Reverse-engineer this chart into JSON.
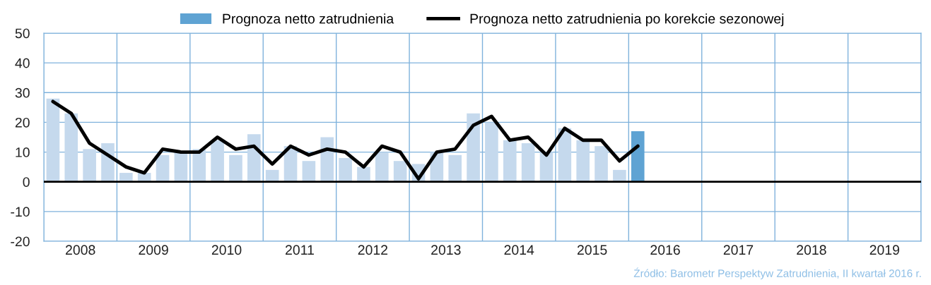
{
  "chart_data": {
    "type": "bar",
    "x": [
      2008.125,
      2008.375,
      2008.625,
      2008.875,
      2009.125,
      2009.375,
      2009.625,
      2009.875,
      2010.125,
      2010.375,
      2010.625,
      2010.875,
      2011.125,
      2011.375,
      2011.625,
      2011.875,
      2012.125,
      2012.375,
      2012.625,
      2012.875,
      2013.125,
      2013.375,
      2013.625,
      2013.875,
      2014.125,
      2014.375,
      2014.625,
      2014.875,
      2015.125,
      2015.375,
      2015.625,
      2015.875,
      2016.125
    ],
    "series": [
      {
        "name": "Prognoza netto zatrudnienia",
        "colors": [
          "#c5d9ed",
          "#c5d9ed",
          "#c5d9ed",
          "#c5d9ed",
          "#c5d9ed",
          "#c5d9ed",
          "#c5d9ed",
          "#c5d9ed",
          "#c5d9ed",
          "#c5d9ed",
          "#c5d9ed",
          "#c5d9ed",
          "#c5d9ed",
          "#c5d9ed",
          "#c5d9ed",
          "#c5d9ed",
          "#c5d9ed",
          "#c5d9ed",
          "#c5d9ed",
          "#c5d9ed",
          "#c5d9ed",
          "#c5d9ed",
          "#c5d9ed",
          "#c5d9ed",
          "#c5d9ed",
          "#c5d9ed",
          "#c5d9ed",
          "#c5d9ed",
          "#c5d9ed",
          "#c5d9ed",
          "#c5d9ed",
          "#c5d9ed",
          "#5fa3d3"
        ],
        "color": "#5fa3d3",
        "values": [
          28,
          23,
          11,
          13,
          3,
          3,
          9,
          10,
          11,
          14,
          9,
          16,
          4,
          12,
          7,
          15,
          8,
          5,
          10,
          7,
          6,
          10,
          9,
          23,
          20,
          14,
          13,
          10,
          18,
          14,
          12,
          4,
          17
        ]
      },
      {
        "name": "Prognoza netto zatrudnienia po korekcie sezonowej",
        "type": "line",
        "color": "#000000",
        "values": [
          27,
          23,
          13,
          9,
          5,
          3,
          11,
          10,
          10,
          15,
          11,
          12,
          6,
          12,
          9,
          11,
          10,
          5,
          12,
          10,
          1,
          10,
          11,
          19,
          22,
          14,
          15,
          9,
          18,
          14,
          14,
          7,
          12
        ]
      }
    ],
    "xlim": [
      2008,
      2020
    ],
    "xticks": [
      {
        "value": 2008.5,
        "label": "2008"
      },
      {
        "value": 2009.5,
        "label": "2009"
      },
      {
        "value": 2010.5,
        "label": "2010"
      },
      {
        "value": 2011.5,
        "label": "2011"
      },
      {
        "value": 2012.5,
        "label": "2012"
      },
      {
        "value": 2013.5,
        "label": "2013"
      },
      {
        "value": 2014.5,
        "label": "2014"
      },
      {
        "value": 2015.5,
        "label": "2015"
      },
      {
        "value": 2016.5,
        "label": "2016"
      },
      {
        "value": 2017.5,
        "label": "2017"
      },
      {
        "value": 2018.5,
        "label": "2018"
      },
      {
        "value": 2019.5,
        "label": "2019"
      }
    ],
    "ylim": [
      -20,
      50
    ],
    "yticks": [
      -20,
      -10,
      0,
      10,
      20,
      30,
      40,
      50
    ],
    "ref_lines": [
      {
        "axis": "y",
        "value": 0,
        "color": "#000000"
      }
    ],
    "grid": true,
    "legend": "top",
    "line_style": "solid",
    "marker": "none",
    "annotations": [
      "Źródło: Barometr Perspektyw Zatrudnienia, II kwartał 2016 r."
    ]
  }
}
